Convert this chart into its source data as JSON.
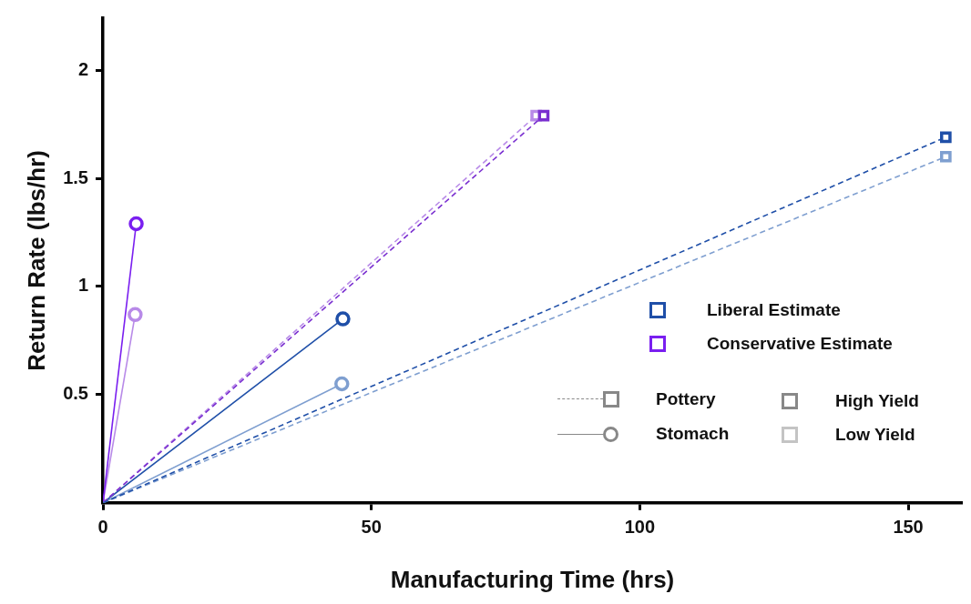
{
  "chart_data": {
    "type": "line",
    "xlabel": "Manufacturing Time (hrs)",
    "ylabel": "Return Rate (lbs/hr)",
    "xlim": [
      0,
      160
    ],
    "xticks": [
      0,
      50,
      100,
      150
    ],
    "ylim": [
      0,
      2.24
    ],
    "yticks": [
      0.5,
      1,
      1.5,
      2
    ],
    "grid": false,
    "legend": false,
    "annotations": [
      "Liberal Estimate",
      "Conservative Estimate",
      "Pottery",
      "Stomach",
      "High Yield",
      "Low Yield"
    ],
    "series": [
      {
        "color": "#1f4fa8",
        "x": [
          0,
          157
        ],
        "values": [
          0,
          1.69
        ],
        "marker": "square",
        "line_style": "dashed"
      },
      {
        "color": "#7f9fd0",
        "x": [
          0,
          157
        ],
        "values": [
          0,
          1.6
        ],
        "marker": "square",
        "line_style": "dashed"
      },
      {
        "color": "#7a2fd0",
        "x": [
          0,
          82.1
        ],
        "values": [
          0,
          1.79
        ],
        "marker": "square",
        "line_style": "dashed"
      },
      {
        "color": "#b88ae8",
        "x": [
          0,
          80.7
        ],
        "values": [
          0,
          1.79
        ],
        "marker": "square",
        "line_style": "dashed"
      },
      {
        "color": "#1f4fa8",
        "x": [
          0,
          44.7
        ],
        "values": [
          0,
          0.85
        ],
        "marker": "circle",
        "line_style": "solid"
      },
      {
        "color": "#7f9fd0",
        "x": [
          0,
          44.5
        ],
        "values": [
          0,
          0.55
        ],
        "marker": "circle",
        "line_style": "solid"
      },
      {
        "color": "#7a1ff0",
        "x": [
          0,
          6.2
        ],
        "values": [
          0,
          1.29
        ],
        "marker": "circle",
        "line_style": "solid"
      },
      {
        "color": "#b88ae8",
        "x": [
          0,
          6
        ],
        "values": [
          0,
          0.87
        ],
        "marker": "circle",
        "line_style": "solid"
      }
    ]
  }
}
